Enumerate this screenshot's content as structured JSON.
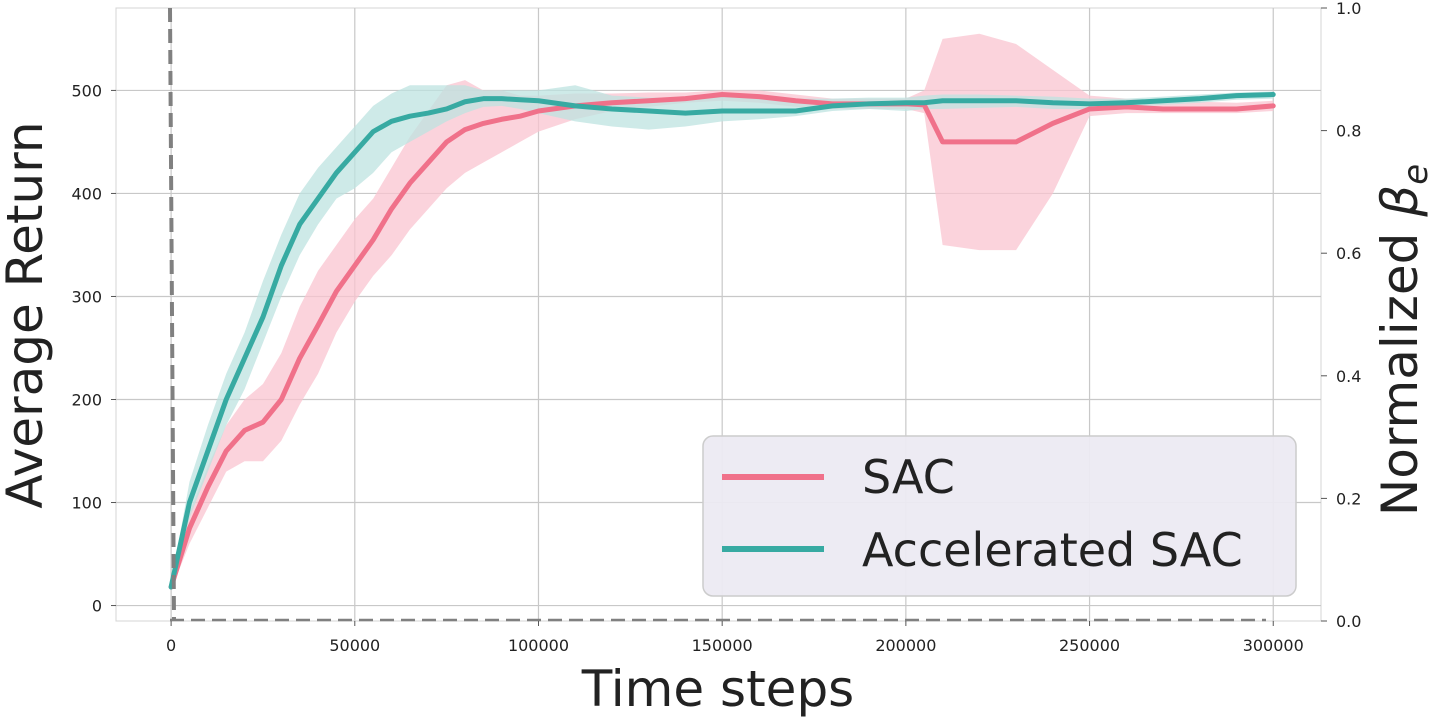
{
  "chart_data": {
    "type": "line",
    "xlabel": "Time steps",
    "ylabel": "Average Return",
    "y2label": "Normalized βe",
    "y2label_base": "Normalized ",
    "y2label_symbol": "β",
    "y2label_sub": "e",
    "xlim": [
      -15000,
      313000
    ],
    "ylim": [
      -15,
      580
    ],
    "y2lim": [
      0.0,
      1.0
    ],
    "xticks": [
      0,
      50000,
      100000,
      150000,
      200000,
      250000,
      300000
    ],
    "xtick_labels": [
      "0",
      "50000",
      "100000",
      "150000",
      "200000",
      "250000",
      "300000"
    ],
    "yticks": [
      0,
      100,
      200,
      300,
      400,
      500
    ],
    "ytick_labels": [
      "0",
      "100",
      "200",
      "300",
      "400",
      "500"
    ],
    "y2ticks": [
      0.0,
      0.2,
      0.4,
      0.6,
      0.8,
      1.0
    ],
    "y2tick_labels": [
      "0.0",
      "0.2",
      "0.4",
      "0.6",
      "0.8",
      "1.0"
    ],
    "grid": true,
    "legend_position": "bottom-right",
    "x": [
      0,
      5000,
      10000,
      15000,
      20000,
      25000,
      30000,
      35000,
      40000,
      45000,
      50000,
      55000,
      60000,
      65000,
      70000,
      75000,
      80000,
      85000,
      90000,
      95000,
      100000,
      110000,
      120000,
      130000,
      140000,
      150000,
      160000,
      170000,
      180000,
      190000,
      200000,
      205000,
      210000,
      220000,
      230000,
      240000,
      250000,
      260000,
      270000,
      280000,
      290000,
      300000
    ],
    "series": [
      {
        "name": "SAC",
        "color": "#f0718a",
        "band_color": "#f9c4d0",
        "values": [
          18,
          75,
          115,
          150,
          170,
          178,
          200,
          240,
          272,
          305,
          330,
          355,
          385,
          410,
          430,
          450,
          462,
          468,
          472,
          475,
          480,
          485,
          488,
          490,
          492,
          496,
          494,
          490,
          487,
          487,
          487,
          486,
          450,
          450,
          450,
          468,
          482,
          484,
          482,
          482,
          482,
          485
        ],
        "lower": [
          15,
          60,
          95,
          130,
          140,
          140,
          160,
          195,
          225,
          265,
          295,
          320,
          340,
          365,
          385,
          405,
          420,
          430,
          440,
          450,
          460,
          472,
          480,
          484,
          488,
          490,
          488,
          484,
          482,
          482,
          482,
          478,
          350,
          345,
          345,
          400,
          475,
          478,
          478,
          478,
          478,
          480
        ],
        "upper": [
          22,
          90,
          135,
          175,
          200,
          215,
          245,
          290,
          325,
          350,
          375,
          395,
          425,
          455,
          480,
          505,
          510,
          500,
          500,
          495,
          495,
          497,
          497,
          498,
          498,
          500,
          500,
          496,
          492,
          492,
          492,
          500,
          550,
          555,
          545,
          520,
          495,
          492,
          490,
          489,
          488,
          490
        ]
      },
      {
        "name": "Accelerated SAC",
        "color": "#37aaa2",
        "band_color": "#bde3e0",
        "values": [
          18,
          100,
          150,
          200,
          240,
          280,
          330,
          370,
          395,
          420,
          440,
          460,
          470,
          475,
          478,
          482,
          489,
          492,
          492,
          491,
          490,
          485,
          482,
          480,
          478,
          480,
          480,
          480,
          485,
          487,
          488,
          488,
          490,
          490,
          490,
          488,
          487,
          488,
          490,
          492,
          495,
          496
        ],
        "lower": [
          15,
          85,
          130,
          175,
          210,
          255,
          300,
          340,
          370,
          395,
          405,
          420,
          440,
          450,
          460,
          470,
          478,
          484,
          485,
          482,
          478,
          470,
          465,
          462,
          465,
          470,
          472,
          475,
          480,
          482,
          480,
          482,
          482,
          483,
          484,
          482,
          482,
          484,
          486,
          488,
          491,
          492
        ],
        "upper": [
          22,
          120,
          175,
          225,
          265,
          315,
          360,
          400,
          425,
          445,
          465,
          485,
          497,
          505,
          505,
          505,
          505,
          500,
          500,
          500,
          500,
          505,
          495,
          493,
          493,
          495,
          493,
          492,
          492,
          493,
          493,
          495,
          496,
          496,
          495,
          494,
          492,
          492,
          494,
          496,
          498,
          499
        ]
      }
    ]
  }
}
